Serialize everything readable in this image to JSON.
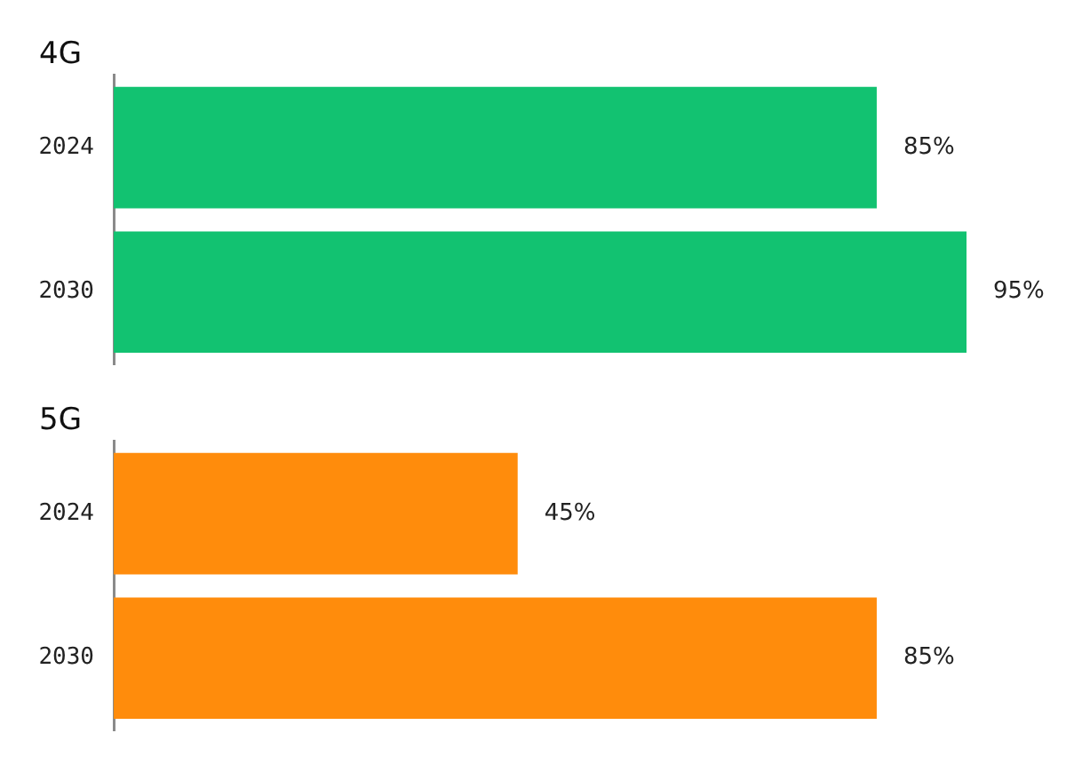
{
  "chart_data": [
    {
      "type": "bar",
      "orientation": "horizontal",
      "title": "4G",
      "categories": [
        "2024",
        "2030"
      ],
      "values": [
        85,
        95
      ],
      "value_labels": [
        "85%",
        "95%"
      ],
      "color": "#12c271",
      "tick_labels": "y"
    },
    {
      "type": "bar",
      "orientation": "horizontal",
      "title": "5G",
      "categories": [
        "2024",
        "2030"
      ],
      "values": [
        45,
        85
      ],
      "value_labels": [
        "45%",
        "85%"
      ],
      "color": "#ff8c0c",
      "tick_labels": "y"
    }
  ]
}
